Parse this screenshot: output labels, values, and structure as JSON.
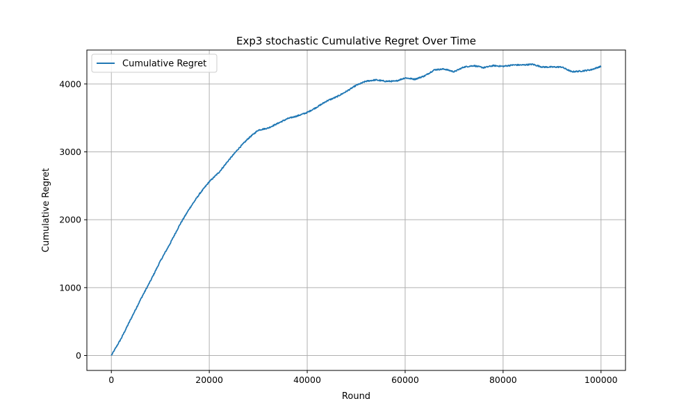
{
  "chart_data": {
    "type": "line",
    "title": "Exp3 stochastic Cumulative Regret Over Time",
    "xlabel": "Round",
    "ylabel": "Cumulative Regret",
    "xlim": [
      -5000,
      105000
    ],
    "ylim": [
      -220,
      4500
    ],
    "xticks": [
      0,
      20000,
      40000,
      60000,
      80000,
      100000
    ],
    "xtick_labels": [
      "0",
      "20000",
      "40000",
      "60000",
      "80000",
      "100000"
    ],
    "yticks": [
      0,
      1000,
      2000,
      3000,
      4000
    ],
    "ytick_labels": [
      "0",
      "1000",
      "2000",
      "3000",
      "4000"
    ],
    "grid": true,
    "legend_position": "upper-left",
    "series": [
      {
        "name": "Cumulative Regret",
        "color": "#1f77b4",
        "x": [
          0,
          2000,
          4000,
          6000,
          8000,
          10000,
          12000,
          14000,
          16000,
          18000,
          20000,
          22000,
          24000,
          26000,
          28000,
          30000,
          32000,
          34000,
          36000,
          38000,
          40000,
          42000,
          44000,
          46000,
          48000,
          50000,
          52000,
          54000,
          56000,
          58000,
          60000,
          62000,
          64000,
          66000,
          68000,
          70000,
          72000,
          74000,
          76000,
          78000,
          80000,
          82000,
          84000,
          86000,
          88000,
          90000,
          92000,
          94000,
          96000,
          98000,
          100000
        ],
        "y": [
          0,
          250,
          540,
          830,
          1100,
          1390,
          1650,
          1930,
          2170,
          2380,
          2560,
          2700,
          2880,
          3050,
          3200,
          3320,
          3350,
          3420,
          3490,
          3530,
          3580,
          3660,
          3750,
          3810,
          3890,
          3980,
          4040,
          4060,
          4040,
          4040,
          4090,
          4070,
          4120,
          4210,
          4220,
          4180,
          4250,
          4270,
          4240,
          4270,
          4260,
          4280,
          4280,
          4290,
          4250,
          4250,
          4250,
          4180,
          4190,
          4210,
          4260
        ]
      }
    ]
  }
}
